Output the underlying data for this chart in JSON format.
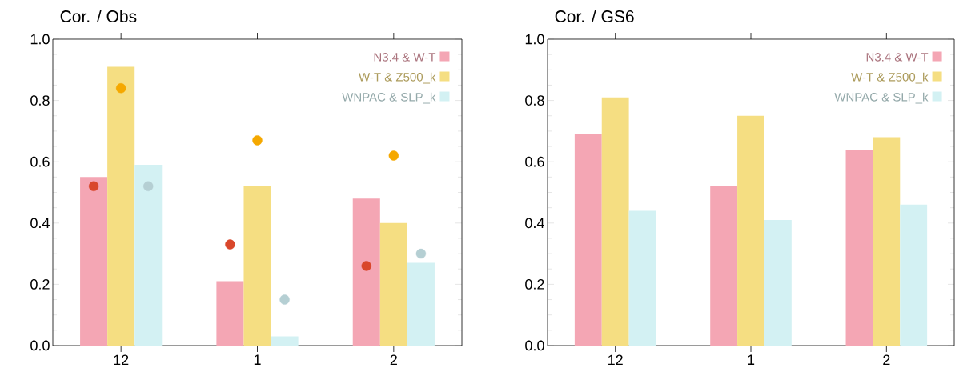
{
  "chart_data": [
    {
      "type": "bar",
      "title": "Cor. / Obs",
      "marker": "circle",
      "categories": [
        "12",
        "1",
        "2"
      ],
      "ylim": [
        0,
        1
      ],
      "yticks": [
        {
          "value": 0,
          "label": "0.0"
        },
        {
          "value": 0.2,
          "label": "0.2"
        },
        {
          "value": 0.4,
          "label": "0.4"
        },
        {
          "value": 0.6,
          "label": "0.6"
        },
        {
          "value": 0.8,
          "label": "0.8"
        },
        {
          "value": 1,
          "label": "1.0"
        }
      ],
      "legend": "top right",
      "series": [
        {
          "name": "N3.4 & W-T",
          "color": "#f4a6b4",
          "values": [
            0.55,
            0.21,
            0.48
          ]
        },
        {
          "name": "W-T & Z500_k",
          "color": "#f5de82",
          "values": [
            0.91,
            0.52,
            0.4
          ]
        },
        {
          "name": "WNPAC & SLP_k",
          "color": "#d3f1f3",
          "values": [
            0.59,
            0.03,
            0.27
          ]
        },
        {
          "type": "scatter",
          "color": "#d9472b",
          "x": [
            "12",
            "1",
            "2"
          ],
          "values": [
            0.52,
            0.33,
            0.26
          ]
        },
        {
          "type": "scatter",
          "color": "#f5a800",
          "x": [
            "12",
            "1",
            "2"
          ],
          "values": [
            0.84,
            0.67,
            0.62
          ]
        },
        {
          "type": "scatter",
          "color": "#b5cfd3",
          "x": [
            "12",
            "1",
            "2"
          ],
          "values": [
            0.52,
            0.15,
            0.3
          ]
        }
      ]
    },
    {
      "type": "bar",
      "title": "Cor. / GS6",
      "categories": [
        "12",
        "1",
        "2"
      ],
      "ylim": [
        0,
        1
      ],
      "yticks": [
        {
          "value": 0,
          "label": "0.0"
        },
        {
          "value": 0.2,
          "label": "0.2"
        },
        {
          "value": 0.4,
          "label": "0.4"
        },
        {
          "value": 0.6,
          "label": "0.6"
        },
        {
          "value": 0.8,
          "label": "0.8"
        },
        {
          "value": 1,
          "label": "1.0"
        }
      ],
      "legend": "top right",
      "series": [
        {
          "name": "N3.4 & W-T",
          "color": "#f4a6b4",
          "values": [
            0.69,
            0.52,
            0.64
          ]
        },
        {
          "name": "W-T & Z500_k",
          "color": "#f5de82",
          "values": [
            0.81,
            0.75,
            0.68
          ]
        },
        {
          "name": "WNPAC & SLP_k",
          "color": "#d3f1f3",
          "values": [
            0.44,
            0.41,
            0.46
          ]
        }
      ]
    }
  ]
}
